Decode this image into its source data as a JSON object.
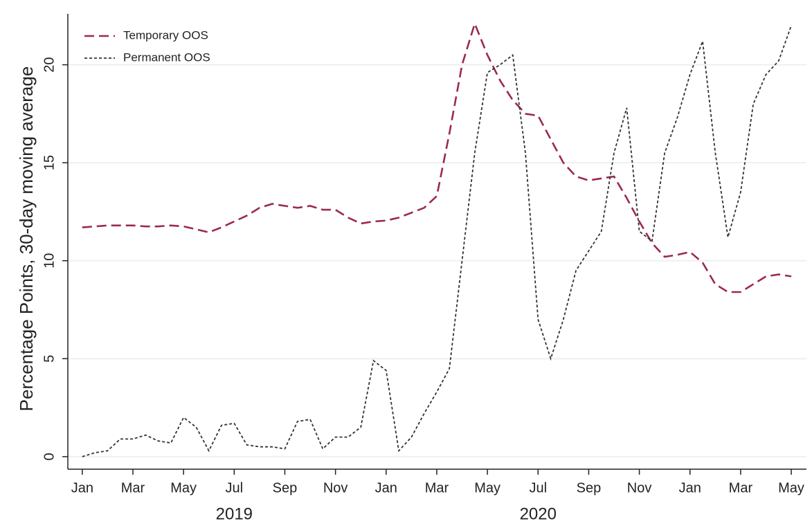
{
  "chart_data": {
    "type": "line",
    "y_label": "Percentage Points, 30-day moving average",
    "x": [
      0,
      0.5,
      1,
      1.5,
      2,
      2.5,
      3,
      3.5,
      4,
      4.5,
      5,
      5.5,
      6,
      6.5,
      7,
      7.5,
      8,
      8.5,
      9,
      9.5,
      10,
      10.5,
      11,
      11.5,
      12,
      12.5,
      13,
      13.5,
      14,
      14.5,
      15,
      15.5,
      16,
      16.5,
      17,
      17.5,
      18,
      18.5,
      19,
      19.5,
      20,
      20.5,
      21,
      21.5,
      22,
      22.5,
      23,
      23.5,
      24,
      24.5,
      25,
      25.5,
      26,
      26.5,
      27,
      27.5,
      28
    ],
    "series": [
      {
        "name": "Temporary OOS",
        "color": "#9b2a4a",
        "dash": "14,7",
        "values": [
          11.7,
          11.75,
          11.8,
          11.8,
          11.8,
          11.75,
          11.75,
          11.8,
          11.75,
          11.6,
          11.45,
          11.7,
          12.0,
          12.3,
          12.7,
          12.9,
          12.8,
          12.7,
          12.8,
          12.6,
          12.6,
          12.2,
          11.9,
          12.0,
          12.05,
          12.2,
          12.45,
          12.7,
          13.3,
          16.5,
          20.0,
          22.1,
          20.5,
          19.2,
          18.2,
          17.5,
          17.4,
          16.2,
          15.0,
          14.3,
          14.1,
          14.2,
          14.3,
          13.2,
          12.0,
          10.9,
          10.2,
          10.3,
          10.45,
          9.9,
          8.8,
          8.4,
          8.4,
          8.8,
          9.2,
          9.3,
          9.2
        ]
      },
      {
        "name": "Permanent OOS",
        "color": "#333333",
        "dash": "4,3",
        "values": [
          0.0,
          0.2,
          0.3,
          0.9,
          0.9,
          1.1,
          0.8,
          0.7,
          2.0,
          1.5,
          0.3,
          1.6,
          1.7,
          0.6,
          0.5,
          0.5,
          0.4,
          1.8,
          1.9,
          0.4,
          1.0,
          1.0,
          1.5,
          4.9,
          4.4,
          0.3,
          1.0,
          2.2,
          3.3,
          4.5,
          10.0,
          15.5,
          19.6,
          20.0,
          20.5,
          15.5,
          7.0,
          5.0,
          7.0,
          9.5,
          10.5,
          11.5,
          15.5,
          17.8,
          11.5,
          11.0,
          15.5,
          17.3,
          19.5,
          21.2,
          15.5,
          11.2,
          13.5,
          18.0,
          19.5,
          20.2,
          22.0
        ]
      }
    ],
    "xlim": [
      -0.57,
      28.6
    ],
    "xticks": [
      {
        "value": 0,
        "label": "Jan"
      },
      {
        "value": 2,
        "label": "Mar"
      },
      {
        "value": 4,
        "label": "May"
      },
      {
        "value": 6,
        "label": "Jul"
      },
      {
        "value": 8,
        "label": "Sep"
      },
      {
        "value": 10,
        "label": "Nov"
      },
      {
        "value": 12,
        "label": "Jan"
      },
      {
        "value": 14,
        "label": "Mar"
      },
      {
        "value": 16,
        "label": "May"
      },
      {
        "value": 18,
        "label": "Jul"
      },
      {
        "value": 20,
        "label": "Sep"
      },
      {
        "value": 22,
        "label": "Nov"
      },
      {
        "value": 24,
        "label": "Jan"
      },
      {
        "value": 26,
        "label": "Mar"
      },
      {
        "value": 28,
        "label": "May"
      }
    ],
    "xticks2": [
      {
        "value": 6,
        "label": "2019"
      },
      {
        "value": 18,
        "label": "2020"
      }
    ],
    "ylim": [
      -0.64,
      22.6
    ],
    "yticks": [
      0,
      5,
      10,
      15,
      20
    ],
    "grid": true,
    "legend": "top-left"
  }
}
